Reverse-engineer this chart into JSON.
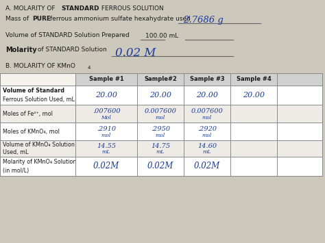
{
  "bg_color": "#cdc8bc",
  "text_color": "#1a1a1a",
  "hw_color": "#1a3a9a",
  "col_headers": [
    "Sample #1",
    "Sample#2",
    "Sample #3",
    "Sample #4"
  ],
  "row_labels_line1": [
    "Volume of Standard",
    "Moles of Fe²⁺, mol",
    "Moles of KMnO₄, mol",
    "Volume of KMnO₄ Solution",
    "Molarity of KMnO₄ Solution"
  ],
  "row_labels_line2": [
    "Ferrous Solution Used, mL",
    "",
    "",
    "Used, mL",
    "(in mol/L)"
  ],
  "row_bold": [
    true,
    false,
    false,
    false,
    false
  ],
  "table_data": [
    [
      "20.00",
      "20.00",
      "20.00",
      "20.00"
    ],
    [
      ".007600\nMol",
      "0.007600\nmol",
      "0.007600\nmol",
      ""
    ],
    [
      ".2910\nmol",
      ".2950\nmol",
      ".2920\nmol",
      ""
    ],
    [
      "14.55\nmL",
      "14.75\nmL",
      "14.60\nmL",
      ""
    ],
    [
      "0.02M",
      "0.02M",
      "0.02M",
      ""
    ]
  ],
  "table_data_hw": [
    true,
    true,
    true,
    true,
    true
  ],
  "mass_value": "2.7686 g",
  "molarity_value": "0.02 M"
}
